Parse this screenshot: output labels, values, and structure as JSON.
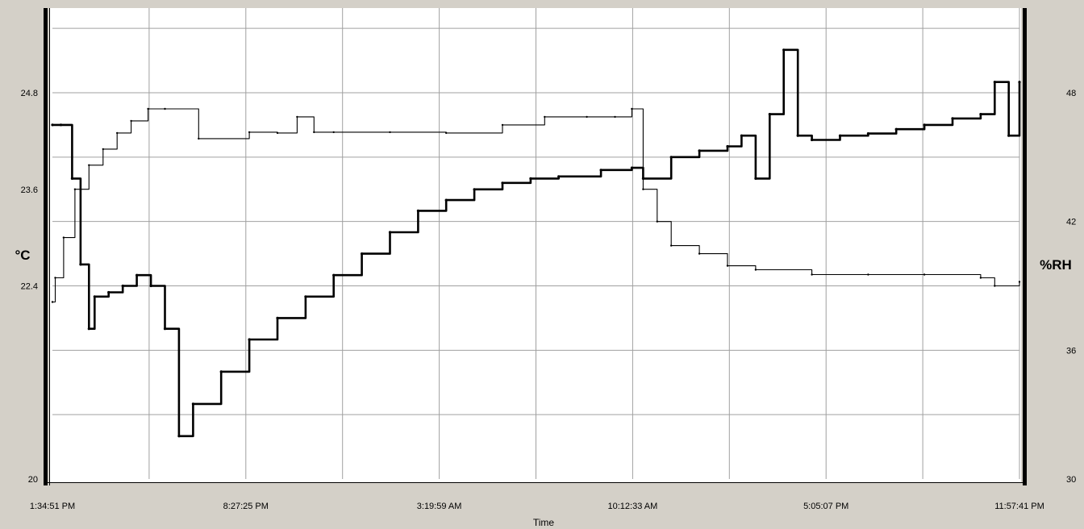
{
  "colors": {
    "frame": "#d4d0c8",
    "plot_background": "#ffffff",
    "gridline": "#a0a0a0",
    "series": "#000000"
  },
  "chart_data": {
    "type": "line",
    "title": "",
    "xlabel": "Time",
    "ylabel_left": "°C",
    "ylabel_right": "%RH",
    "grid": true,
    "legend": "none",
    "x_ticks": [
      "1:34:51 PM",
      "8:27:25 PM",
      "3:19:59 AM",
      "10:12:33 AM",
      "5:05:07 PM",
      "11:57:41 PM"
    ],
    "x_range_hours": [
      0,
      34.38
    ],
    "y_left": {
      "range": [
        20,
        24.8
      ],
      "ticks": [
        "20",
        "22.4",
        "23.6",
        "24.8"
      ],
      "tick_values": [
        20,
        22.4,
        23.6,
        24.8
      ]
    },
    "y_right": {
      "range": [
        30,
        48
      ],
      "ticks": [
        "30",
        "36",
        "42",
        "48"
      ],
      "tick_values": [
        30,
        36,
        42,
        48
      ]
    },
    "series": [
      {
        "axis": "left",
        "style": "thin",
        "x_hours": [
          0,
          0.1,
          0.4,
          0.8,
          1.3,
          1.8,
          2.3,
          2.8,
          3.4,
          4.0,
          5.2,
          7.0,
          8.0,
          8.7,
          9.3,
          10.0,
          12.0,
          14.0,
          16.0,
          17.5,
          19.0,
          20.0,
          20.6,
          21.0,
          21.5,
          22.0,
          23.0,
          24.0,
          25.0,
          27.0,
          29.0,
          31.0,
          33.0,
          33.5,
          34.38
        ],
        "values": [
          22.2,
          22.5,
          23.0,
          23.6,
          23.9,
          24.1,
          24.3,
          24.45,
          24.6,
          24.6,
          24.23,
          24.31,
          24.3,
          24.5,
          24.31,
          24.31,
          24.31,
          24.3,
          24.4,
          24.5,
          24.5,
          24.5,
          24.6,
          23.6,
          23.2,
          22.9,
          22.8,
          22.65,
          22.6,
          22.54,
          22.54,
          22.54,
          22.5,
          22.4,
          22.45
        ]
      },
      {
        "axis": "right",
        "style": "bold",
        "x_hours": [
          0,
          0.3,
          0.7,
          1.0,
          1.3,
          1.5,
          2.0,
          2.5,
          3.0,
          3.5,
          4.0,
          4.5,
          5.0,
          6.0,
          7.0,
          8.0,
          9.0,
          10.0,
          11.0,
          12.0,
          13.0,
          14.0,
          15.0,
          16.0,
          17.0,
          18.0,
          19.5,
          20.6,
          21.0,
          22.0,
          23.0,
          24.0,
          24.5,
          25.0,
          25.5,
          26.0,
          26.5,
          27.0,
          28.0,
          29.0,
          30.0,
          31.0,
          32.0,
          33.0,
          33.5,
          34.0,
          34.38
        ],
        "values": [
          46.5,
          46.5,
          44.0,
          40.0,
          37.0,
          38.5,
          38.7,
          39.0,
          39.5,
          39.0,
          37.0,
          32.0,
          33.5,
          35.0,
          36.5,
          37.5,
          38.5,
          39.5,
          40.5,
          41.5,
          42.5,
          43.0,
          43.5,
          43.8,
          44.0,
          44.1,
          44.4,
          44.5,
          44.0,
          45.0,
          45.3,
          45.5,
          46.0,
          44.0,
          47.0,
          50.0,
          46.0,
          45.8,
          46.0,
          46.1,
          46.3,
          46.5,
          46.8,
          47.0,
          48.5,
          46.0,
          48.5
        ]
      }
    ]
  }
}
